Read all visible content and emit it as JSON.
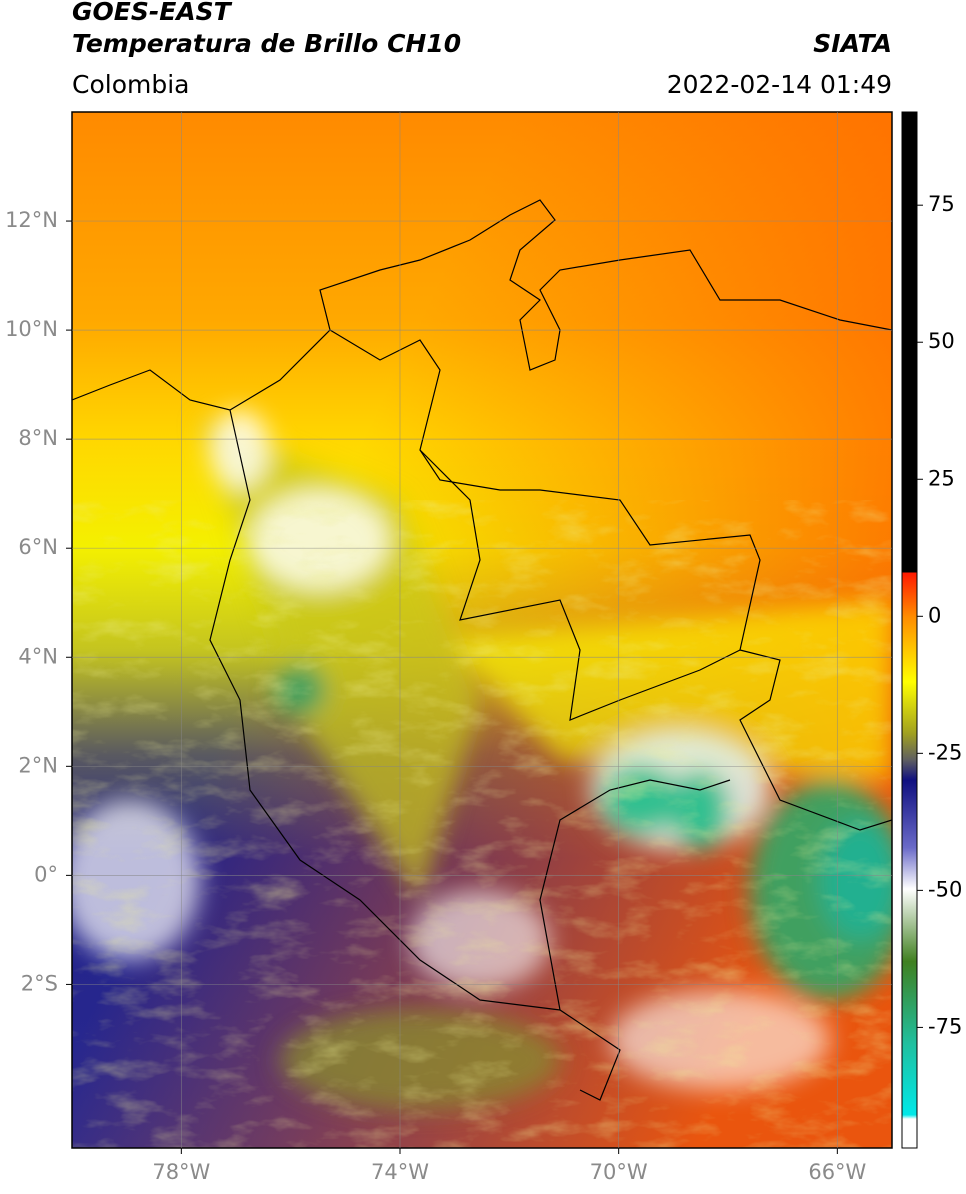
{
  "header": {
    "satellite": "GOES-EAST",
    "product": "Temperatura de Brillo CH10",
    "agency": "SIATA",
    "region": "Colombia",
    "datetime": "2022-02-14 01:49"
  },
  "map": {
    "xlim": [
      -80,
      -65
    ],
    "ylim": [
      -5,
      14
    ],
    "xticks": [
      {
        "value": -78,
        "label": "78°W"
      },
      {
        "value": -74,
        "label": "74°W"
      },
      {
        "value": -70,
        "label": "70°W"
      },
      {
        "value": -66,
        "label": "66°W"
      }
    ],
    "yticks": [
      {
        "value": 12,
        "label": "12°N"
      },
      {
        "value": 10,
        "label": "10°N"
      },
      {
        "value": 8,
        "label": "8°N"
      },
      {
        "value": 6,
        "label": "6°N"
      },
      {
        "value": 4,
        "label": "4°N"
      },
      {
        "value": 2,
        "label": "2°N"
      },
      {
        "value": 0,
        "label": "0°"
      },
      {
        "value": -2,
        "label": "2°S"
      }
    ],
    "grid": true
  },
  "colorbar": {
    "clim": [
      -97,
      92
    ],
    "ticks": [
      75,
      50,
      25,
      0,
      -25,
      -50,
      -75
    ]
  }
}
